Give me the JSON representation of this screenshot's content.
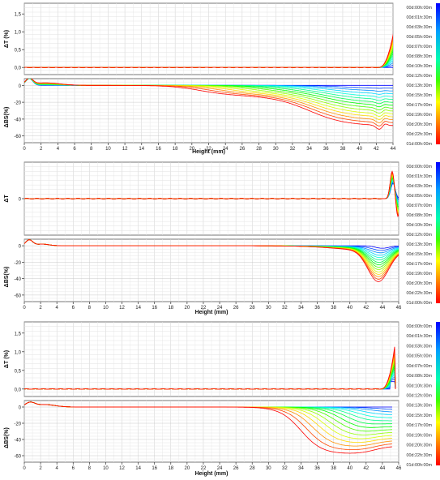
{
  "panels": [
    {
      "x_max": 44,
      "x_ticks": [
        0,
        2,
        4,
        6,
        8,
        10,
        12,
        14,
        16,
        18,
        20,
        22,
        24,
        26,
        28,
        30,
        32,
        34,
        36,
        38,
        40,
        42,
        44
      ],
      "x_tick_labels": [
        "0",
        "2",
        "4",
        "6",
        "8",
        "10",
        "12",
        "14",
        "16",
        "18",
        "20",
        "22",
        "24",
        "26",
        "28",
        "30",
        "32",
        "34",
        "36",
        "38",
        "40",
        "42",
        "44"
      ],
      "xlabel": "Height (mm)",
      "dt_label": "ΔT (%)",
      "dt_ylim": [
        -0.2,
        1.8
      ],
      "dt_ticks": [
        0,
        0.5,
        1,
        1.5
      ],
      "dt_tick_labels": [
        "0,0",
        "0,5",
        "1,0",
        "1,5"
      ],
      "bs_label": "ΔBS(%)",
      "bs_ylim": [
        -68,
        8
      ],
      "bs_ticks": [
        0,
        -20,
        -40,
        -60
      ],
      "bs_tick_labels": [
        "0",
        "-20",
        "-40",
        "-60"
      ],
      "legend_labels": [
        "00d:00h:00m",
        "00d:01h:30m",
        "00d:03h:30m",
        "00d:05h:00m",
        "00d:07h:00m",
        "00d:08h:30m",
        "00d:10h:30m",
        "00d:12h:00m",
        "00d:13h:30m",
        "00d:15h:30m",
        "00d:17h:00m",
        "00d:19h:00m",
        "00d:20h:30m",
        "00d:22h:30m",
        "01d:00h:00m"
      ]
    },
    {
      "x_max": 46,
      "x_ticks": [
        0,
        2,
        4,
        6,
        8,
        10,
        12,
        14,
        16,
        18,
        20,
        22,
        24,
        26,
        28,
        30,
        32,
        34,
        36,
        38,
        40,
        42,
        44,
        46
      ],
      "x_tick_labels": [
        "0",
        "2",
        "4",
        "6",
        "8",
        "10",
        "12",
        "14",
        "16",
        "18",
        "20",
        "22",
        "24",
        "26",
        "28",
        "30",
        "32",
        "34",
        "36",
        "38",
        "40",
        "42",
        "44",
        "46"
      ],
      "xlabel": "Height (mm)",
      "dt_label": "ΔT",
      "dt_ylim": [
        -0.6,
        0.6
      ],
      "dt_ticks": [
        0
      ],
      "dt_tick_labels": [
        "0"
      ],
      "bs_label": "ΔBS(%)",
      "bs_ylim": [
        -68,
        8
      ],
      "bs_ticks": [
        0,
        -20,
        -40,
        -60
      ],
      "bs_tick_labels": [
        "0",
        "-20",
        "-40",
        "-60"
      ],
      "legend_labels": [
        "00d:00h:00m",
        "00d:01h:30m",
        "00d:03h:30m",
        "00d:05h:00m",
        "00d:07h:00m",
        "00d:08h:30m",
        "00d:10h:30m",
        "00d:12h:00m",
        "00d:13h:30m",
        "00d:15h:30m",
        "00d:17h:00m",
        "00d:19h:00m",
        "00d:20h:30m",
        "00d:22h:30m",
        "01d:00h:00m"
      ]
    },
    {
      "x_max": 46,
      "x_ticks": [
        0,
        2,
        4,
        6,
        8,
        10,
        12,
        14,
        16,
        18,
        20,
        22,
        24,
        26,
        28,
        30,
        32,
        34,
        36,
        38,
        40,
        42,
        44,
        46
      ],
      "x_tick_labels": [
        "0",
        "2",
        "4",
        "6",
        "8",
        "10",
        "12",
        "14",
        "16",
        "18",
        "20",
        "22",
        "24",
        "26",
        "28",
        "30",
        "32",
        "34",
        "36",
        "38",
        "40",
        "42",
        "44",
        "46"
      ],
      "xlabel": "Height (mm)",
      "dt_label": "ΔT (%)",
      "dt_ylim": [
        -0.2,
        1.8
      ],
      "dt_ticks": [
        0,
        0.5,
        1,
        1.5
      ],
      "dt_tick_labels": [
        "0,0",
        "0,5",
        "1,0",
        "1,5"
      ],
      "bs_label": "ΔBS(%)",
      "bs_ylim": [
        -68,
        8
      ],
      "bs_ticks": [
        0,
        -20,
        -40,
        -60
      ],
      "bs_tick_labels": [
        "0",
        "-20",
        "-40",
        "-60"
      ],
      "legend_labels": [
        "00d:00h:00m",
        "00d:01h:30m",
        "00d:03h:30m",
        "00d:05h:00m",
        "00d:07h:00m",
        "00d:08h:30m",
        "00d:10h:30m",
        "00d:12h:00m",
        "00d:13h:30m",
        "00d:15h:30m",
        "00d:17h:00m",
        "00d:19h:00m",
        "00d:20h:30m",
        "00d:22h:30m",
        "01d:00h:00m"
      ]
    }
  ],
  "chart_data": [
    {
      "type": "line",
      "subplot": "ΔT (%)",
      "x_range": [
        0,
        44
      ],
      "ylim": [
        -0.2,
        1.8
      ],
      "series_count": 15,
      "series": [
        {
          "name": "00d:00h:00m",
          "x": [
            0,
            40,
            43,
            44,
            44.5
          ],
          "y": [
            0,
            0,
            0,
            0,
            0
          ]
        },
        {
          "name": "01d:00h:00m",
          "x": [
            0,
            40,
            43,
            44,
            44.5
          ],
          "y": [
            0,
            0,
            0.1,
            0.6,
            1.4
          ]
        }
      ]
    },
    {
      "type": "line",
      "subplot": "ΔBS(%)",
      "x_range": [
        0,
        44
      ],
      "ylim": [
        -68,
        8
      ],
      "series_count": 15,
      "series": [
        {
          "name": "00d:00h:00m",
          "x": [
            0,
            1,
            4,
            14,
            44
          ],
          "y": [
            0,
            0,
            0,
            0,
            0
          ]
        },
        {
          "name": "01d:00h:00m",
          "x": [
            0,
            0.6,
            2,
            6,
            14,
            22,
            26,
            32,
            36,
            40,
            42,
            43,
            44
          ],
          "y": [
            0,
            7,
            3,
            2,
            0,
            -2,
            -8,
            -14,
            -25,
            -42,
            -48,
            -46,
            -50
          ]
        }
      ]
    },
    {
      "type": "line",
      "subplot": "ΔT",
      "x_range": [
        0,
        46
      ],
      "ylim": [
        -0.6,
        0.6
      ],
      "series_count": 15,
      "series": [
        {
          "name": "00d:00h:00m",
          "x": [
            0,
            44,
            45.2,
            46
          ],
          "y": [
            0,
            0,
            0,
            0
          ]
        },
        {
          "name": "01d:00h:00m",
          "x": [
            0,
            44,
            45.2,
            46
          ],
          "y": [
            0,
            0,
            0.45,
            -0.3
          ]
        }
      ]
    },
    {
      "type": "line",
      "subplot": "ΔBS(%)",
      "x_range": [
        0,
        46
      ],
      "ylim": [
        -68,
        8
      ],
      "series_count": 15,
      "series": [
        {
          "name": "00d:00h:00m",
          "x": [
            0,
            4,
            40,
            46
          ],
          "y": [
            0,
            0,
            0,
            0
          ]
        },
        {
          "name": "01d:00h:00m",
          "x": [
            0,
            0.6,
            2,
            4,
            36,
            40,
            43,
            44,
            45,
            46
          ],
          "y": [
            0,
            7,
            3,
            1,
            -2,
            -10,
            -38,
            -34,
            -22,
            -10
          ]
        }
      ]
    },
    {
      "type": "line",
      "subplot": "ΔT (%)",
      "x_range": [
        0,
        46
      ],
      "ylim": [
        -0.2,
        1.8
      ],
      "series_count": 15,
      "series": [
        {
          "name": "00d:00h:00m",
          "x": [
            0,
            43,
            45,
            45.6
          ],
          "y": [
            0,
            0,
            0,
            0
          ]
        },
        {
          "name": "01d:00h:00m",
          "x": [
            0,
            43,
            45,
            45.6
          ],
          "y": [
            0,
            0,
            0.3,
            1.3
          ]
        }
      ]
    },
    {
      "type": "line",
      "subplot": "ΔBS(%)",
      "x_range": [
        0,
        46
      ],
      "ylim": [
        -68,
        8
      ],
      "series_count": 15,
      "series": [
        {
          "name": "00d:00h:00m",
          "x": [
            0,
            4,
            32,
            46
          ],
          "y": [
            0,
            0,
            0,
            0
          ]
        },
        {
          "name": "01d:00h:00m",
          "x": [
            0,
            0.6,
            2,
            5,
            32,
            34,
            36,
            40,
            42,
            44,
            45
          ],
          "y": [
            0,
            5,
            3,
            1,
            -2,
            -20,
            -45,
            -62,
            -60,
            -58,
            -50
          ]
        }
      ]
    }
  ]
}
